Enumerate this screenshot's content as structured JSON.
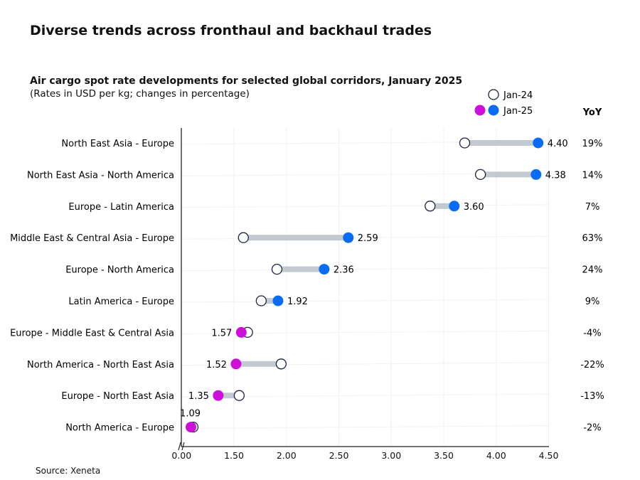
{
  "title": "Diverse trends across fronthaul and backhaul trades",
  "source": "Source: Xeneta",
  "chart_data": {
    "type": "dumbbell",
    "title": "Air cargo spot rate developments for selected global corridors, January 2025",
    "subtitle": "(Rates in USD per kg; changes in percentage)",
    "legend": [
      "Jan-24",
      "Jan-25"
    ],
    "legend_placement": "top-right",
    "yoy_header": "YoY",
    "x_ticks": [
      "0.00",
      "1.50",
      "2.00",
      "2.50",
      "3.00",
      "3.50",
      "4.00",
      "4.50"
    ],
    "x_tick_values": [
      1.0,
      1.5,
      2.0,
      2.5,
      3.0,
      3.5,
      4.0,
      4.5
    ],
    "axis_break": true,
    "grid": true,
    "colors": {
      "increase": "#0a6cf5",
      "decrease": "#cc10d8",
      "connector": "#c3c9d1",
      "jan24_stroke": "#1b2440"
    },
    "rows": [
      {
        "label": "North East Asia - Europe",
        "jan24": 3.7,
        "jan25": 4.4,
        "jan25_label": "4.40",
        "yoy": "19%"
      },
      {
        "label": "North East Asia - North America",
        "jan24": 3.85,
        "jan25": 4.38,
        "jan25_label": "4.38",
        "yoy": "14%"
      },
      {
        "label": "Europe - Latin America",
        "jan24": 3.37,
        "jan25": 3.6,
        "jan25_label": "3.60",
        "yoy": "7%"
      },
      {
        "label": "Middle East & Central Asia - Europe",
        "jan24": 1.59,
        "jan25": 2.59,
        "jan25_label": "2.59",
        "yoy": "63%"
      },
      {
        "label": "Europe - North America",
        "jan24": 1.91,
        "jan25": 2.36,
        "jan25_label": "2.36",
        "yoy": "24%"
      },
      {
        "label": "Latin America - Europe",
        "jan24": 1.76,
        "jan25": 1.92,
        "jan25_label": "1.92",
        "yoy": "9%"
      },
      {
        "label": "Europe - Middle East & Central Asia",
        "jan24": 1.63,
        "jan25": 1.57,
        "jan25_label": "1.57",
        "yoy": "-4%"
      },
      {
        "label": "North America - North East Asia",
        "jan24": 1.95,
        "jan25": 1.52,
        "jan25_label": "1.52",
        "yoy": "-22%"
      },
      {
        "label": "Europe - North East Asia",
        "jan24": 1.55,
        "jan25": 1.35,
        "jan25_label": "1.35",
        "yoy": "-13%"
      },
      {
        "label": "North America - Europe",
        "jan24": 1.11,
        "jan25": 1.09,
        "jan25_label": "1.09",
        "yoy": "-2%"
      }
    ]
  }
}
